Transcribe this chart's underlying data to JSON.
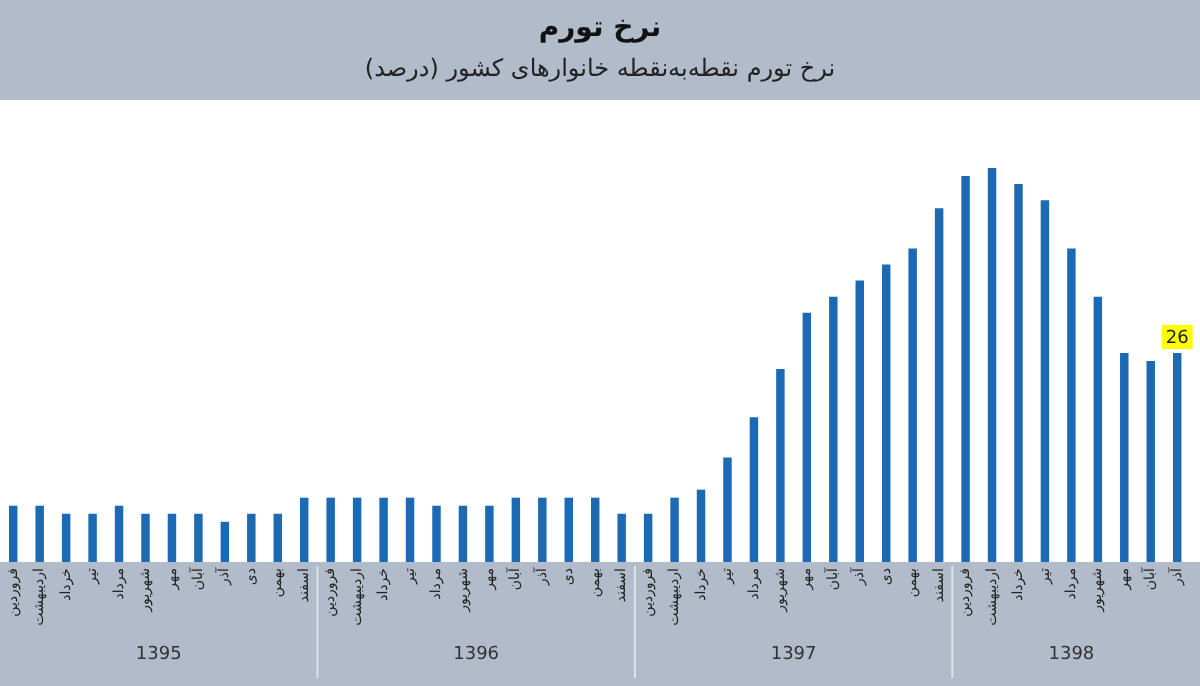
{
  "chart_data": {
    "type": "bar",
    "title": "نرخ تورم",
    "subtitle": "نرخ تورم نقطه‌به‌نقطه خانوارهای کشور (درصد)",
    "categories": [
      "فروردین",
      "اردیبهشت",
      "خرداد",
      "تیر",
      "مرداد",
      "شهریور",
      "مهر",
      "آبان",
      "آذر",
      "دی",
      "بهمن",
      "اسفند",
      "فروردین",
      "اردیبهشت",
      "خرداد",
      "تیر",
      "مرداد",
      "شهریور",
      "مهر",
      "آبان",
      "آذر",
      "دی",
      "بهمن",
      "اسفند",
      "فروردین",
      "اردیبهشت",
      "خرداد",
      "تیر",
      "مرداد",
      "شهریور",
      "مهر",
      "آبان",
      "آذر",
      "دی",
      "بهمن",
      "اسفند",
      "فروردین",
      "اردیبهشت",
      "خرداد",
      "تیر",
      "مرداد",
      "شهریور",
      "مهر",
      "آبان",
      "آذر"
    ],
    "values": [
      7,
      7,
      6,
      6,
      7,
      6,
      6,
      6,
      5,
      6,
      6,
      8,
      8,
      8,
      8,
      8,
      7,
      7,
      7,
      8,
      8,
      8,
      8,
      6,
      6,
      8,
      9,
      13,
      18,
      24,
      31,
      33,
      35,
      37,
      39,
      44,
      48,
      49,
      47,
      45,
      39,
      33,
      26,
      25,
      26
    ],
    "value_labels": [
      null,
      null,
      null,
      null,
      null,
      null,
      null,
      null,
      null,
      null,
      null,
      null,
      null,
      null,
      null,
      null,
      null,
      null,
      null,
      null,
      null,
      null,
      null,
      null,
      null,
      null,
      null,
      null,
      null,
      null,
      null,
      null,
      null,
      null,
      null,
      null,
      null,
      null,
      null,
      null,
      null,
      null,
      null,
      null,
      "26"
    ],
    "color": "#1b6ab3",
    "tick_labels": "x",
    "grid": false,
    "legend": false,
    "annotations": [
      "1395",
      "1396",
      "1397",
      "1398"
    ]
  }
}
